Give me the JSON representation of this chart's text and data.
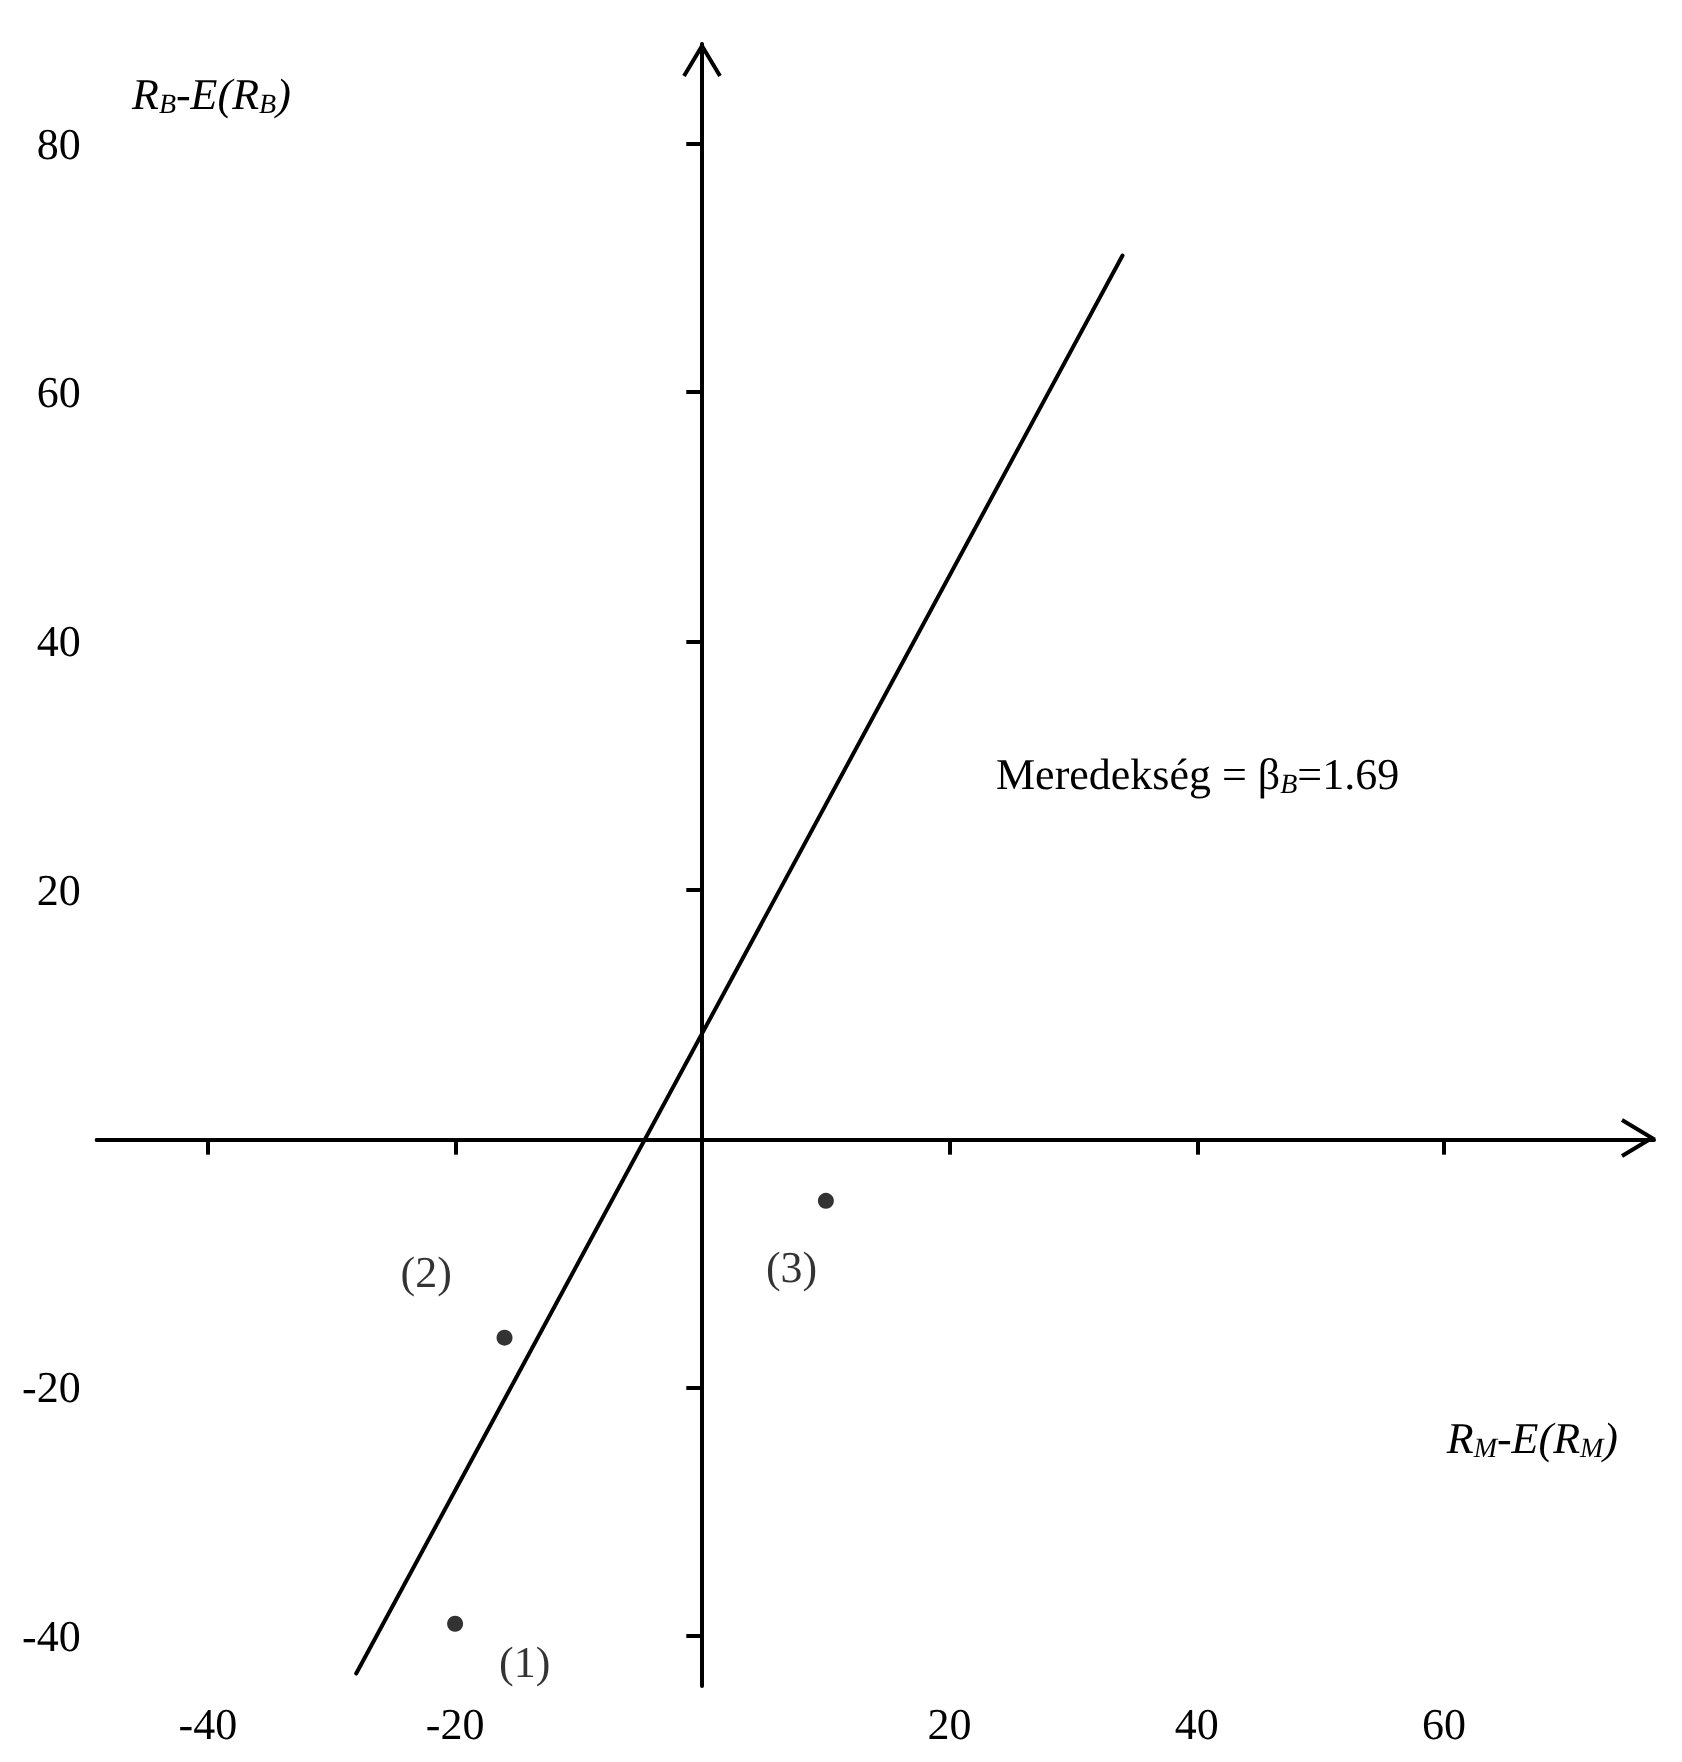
{
  "chart_data": {
    "type": "scatter",
    "xlabel": "R$_{M}$-E(R$_{M}$)",
    "ylabel": "R$_{B}$-E(R$_{B}$)",
    "xlim": [
      -49,
      77
    ],
    "ylim": [
      -44,
      88
    ],
    "xticks": [
      -40,
      -20,
      20,
      40,
      60
    ],
    "yticks": [
      -40,
      -20,
      20,
      40,
      60,
      80
    ],
    "grid": false,
    "series": [
      {
        "type": "line",
        "x": [
          -28,
          34
        ],
        "values": [
          -43,
          71
        ],
        "color": "#000000",
        "marker": "none"
      },
      {
        "type": "scatter",
        "x": [
          -20,
          -16,
          10
        ],
        "values": [
          -39,
          -16,
          -5
        ],
        "color": "#000000",
        "marker": "circle"
      }
    ],
    "annotations": [
      "Meredekség = β$_{B}$=1.69",
      {
        "text": "(1)",
        "x": -20,
        "y": -39
      },
      {
        "text": "(2)",
        "x": -16,
        "y": -16
      },
      {
        "text": "(3)",
        "x": 10,
        "y": -5
      }
    ]
  }
}
